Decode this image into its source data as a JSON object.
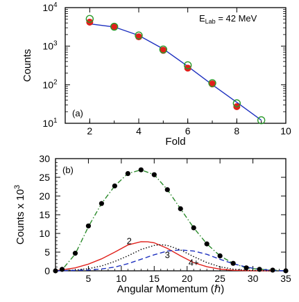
{
  "chart_data": [
    {
      "panel": "(a)",
      "type": "line",
      "title": "",
      "annotation": {
        "prefix": "E",
        "subscript": "Lab",
        "suffix": " = 42 MeV"
      },
      "xlabel": "Fold",
      "ylabel": "Counts",
      "xlim": [
        1,
        10
      ],
      "ylim": [
        10,
        10000
      ],
      "yscale": "log",
      "x_ticks": [
        "2",
        "4",
        "6",
        "8",
        "10"
      ],
      "y_ticks": [
        {
          "base": "10",
          "exp": "1"
        },
        {
          "base": "10",
          "exp": "2"
        },
        {
          "base": "10",
          "exp": "3"
        },
        {
          "base": "10",
          "exp": "4"
        }
      ],
      "grid": false,
      "series": [
        {
          "marker": "filled-circle",
          "color": "#e0201b",
          "x": [
            2,
            3,
            4,
            5,
            6,
            7,
            8
          ],
          "y": [
            4200,
            3200,
            1750,
            780,
            270,
            105,
            27
          ]
        },
        {
          "marker": "open-circle",
          "color": "#2a9a2a",
          "x": [
            2,
            3,
            4,
            5,
            6,
            7,
            8,
            9
          ],
          "y": [
            5100,
            3200,
            1900,
            820,
            320,
            110,
            33,
            12
          ]
        },
        {
          "marker": "none",
          "style": "solid",
          "color": "#1c2fbf",
          "x": [
            2,
            3,
            4,
            5,
            6,
            7,
            8,
            9
          ],
          "y": [
            3800,
            3150,
            1900,
            850,
            300,
            100,
            35,
            12
          ]
        }
      ]
    },
    {
      "panel": "(b)",
      "type": "line",
      "title": "",
      "xlabel": "Angular Momentum (ℏ)",
      "ylabel": {
        "text": "Counts x 10",
        "sup": "3"
      },
      "xlim": [
        0,
        35
      ],
      "ylim": [
        0,
        30
      ],
      "x_ticks": [
        "5",
        "10",
        "15",
        "20",
        "25",
        "30",
        "35"
      ],
      "y_ticks": [
        "0",
        "5",
        "10",
        "15",
        "20",
        "25",
        "30"
      ],
      "grid": false,
      "labels": [
        {
          "text": "2",
          "x": 11.2,
          "y": 7.1
        },
        {
          "text": "3",
          "x": 17.0,
          "y": 3.4
        },
        {
          "text": "4+",
          "x": 21.0,
          "y": 1.4
        }
      ],
      "series": [
        {
          "marker": "filled-circle",
          "color": "#000000",
          "x": [
            0,
            1,
            3,
            5,
            7,
            9,
            11,
            13,
            15,
            17,
            19,
            21,
            23,
            25,
            27,
            29,
            31,
            33,
            35
          ],
          "y": [
            0,
            0.4,
            4.7,
            12,
            18,
            22.7,
            26,
            27,
            25.7,
            21.7,
            16.6,
            11.5,
            7.2,
            4.0,
            2.0,
            0.8,
            0.4,
            0.2,
            0
          ]
        },
        {
          "marker": "none",
          "style": "dash-dot",
          "color": "#2a8a2a",
          "x": [
            0,
            1,
            3,
            5,
            7,
            9,
            11,
            13,
            15,
            17,
            19,
            21,
            23,
            25,
            27,
            29,
            31,
            33,
            35
          ],
          "y": [
            0,
            0.3,
            4.5,
            11.8,
            18,
            22.7,
            26,
            27,
            25.7,
            21.7,
            16.6,
            11.5,
            7.2,
            4.0,
            2.0,
            0.8,
            0.4,
            0.2,
            0
          ]
        },
        {
          "marker": "none",
          "style": "solid",
          "color": "#e0201b",
          "x": [
            0,
            3,
            5,
            7,
            9,
            11,
            13,
            14,
            15,
            17,
            19,
            21,
            23,
            25,
            27,
            29,
            31,
            33
          ],
          "y": [
            0,
            0.8,
            1.8,
            3.2,
            5.0,
            6.9,
            7.8,
            7.75,
            7.5,
            6.0,
            4.0,
            2.2,
            1.1,
            0.45,
            0.15,
            0.05,
            0.02,
            0
          ]
        },
        {
          "marker": "none",
          "style": "dotted",
          "color": "#000000",
          "x": [
            0,
            3,
            5,
            7,
            9,
            11,
            13,
            15,
            16,
            17,
            19,
            21,
            23,
            25,
            27,
            29,
            31,
            33
          ],
          "y": [
            0,
            0.2,
            0.6,
            1.3,
            2.5,
            4.0,
            5.7,
            6.8,
            7.0,
            6.8,
            5.6,
            3.8,
            2.2,
            1.1,
            0.45,
            0.15,
            0.05,
            0
          ]
        },
        {
          "marker": "none",
          "style": "dashed",
          "color": "#1c2fbf",
          "x": [
            0,
            5,
            7,
            9,
            11,
            13,
            15,
            17,
            19,
            21,
            23,
            25,
            27,
            29,
            31,
            33,
            35
          ],
          "y": [
            0,
            0.2,
            0.5,
            1.0,
            1.9,
            3.1,
            4.3,
            5.3,
            5.6,
            5.3,
            4.4,
            3.1,
            1.9,
            1.0,
            0.4,
            0.1,
            0
          ]
        }
      ]
    }
  ]
}
